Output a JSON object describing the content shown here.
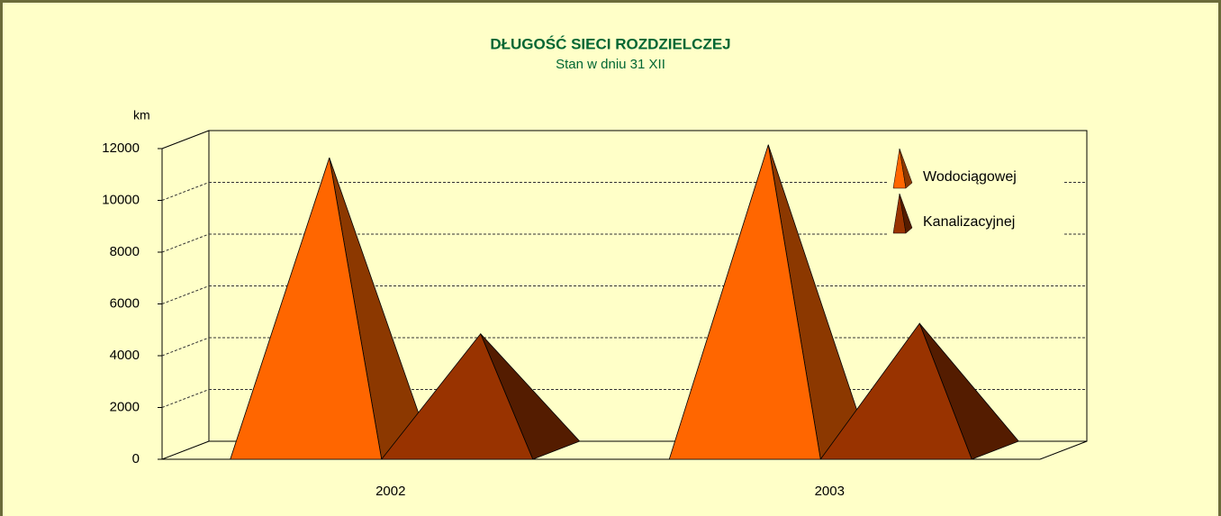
{
  "chart_data": {
    "type": "pyramid3d",
    "title": "DŁUGOŚĆ  SIECI  ROZDZIELCZEJ",
    "subtitle": "Stan w dniu 31 XII",
    "y_label": "km",
    "categories": [
      "2002",
      "2003"
    ],
    "series": [
      {
        "name": "Wodociągowej",
        "color": "#ff6600",
        "values": [
          11300,
          11800
        ]
      },
      {
        "name": "Kanalizacyjnej",
        "color": "#993300",
        "values": [
          4500,
          4900
        ]
      }
    ],
    "ylim": [
      0,
      12000
    ],
    "yticks": [
      0,
      2000,
      4000,
      6000,
      8000,
      10000,
      12000
    ],
    "grid": true
  }
}
